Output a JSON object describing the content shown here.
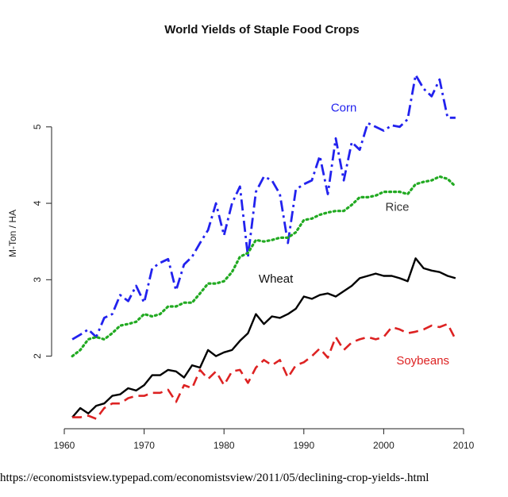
{
  "chart_data": {
    "type": "line",
    "title": "World Yields of Staple Food Crops",
    "xlabel": "",
    "ylabel": "M-Ton / HA",
    "xlim": [
      1960,
      2010
    ],
    "ylim": [
      1.05,
      5.85
    ],
    "xticks": [
      1960,
      1970,
      1980,
      1990,
      2000,
      2010
    ],
    "yticks": [
      2,
      3,
      4,
      5
    ],
    "x": [
      1961,
      1962,
      1963,
      1964,
      1965,
      1966,
      1967,
      1968,
      1969,
      1970,
      1971,
      1972,
      1973,
      1974,
      1975,
      1976,
      1977,
      1978,
      1979,
      1980,
      1981,
      1982,
      1983,
      1984,
      1985,
      1986,
      1987,
      1988,
      1989,
      1990,
      1991,
      1992,
      1993,
      1994,
      1995,
      1996,
      1997,
      1998,
      1999,
      2000,
      2001,
      2002,
      2003,
      2004,
      2005,
      2006,
      2007,
      2008,
      2009
    ],
    "series": [
      {
        "name": "Corn",
        "color": "#2222ee",
        "dash": "long-dash-dot",
        "values": [
          2.22,
          2.28,
          2.35,
          2.25,
          2.5,
          2.55,
          2.8,
          2.72,
          2.92,
          2.7,
          3.15,
          3.22,
          3.27,
          2.86,
          3.2,
          3.3,
          3.48,
          3.65,
          4.0,
          3.58,
          4.0,
          4.22,
          3.3,
          4.15,
          4.35,
          4.3,
          4.12,
          3.48,
          4.18,
          4.25,
          4.3,
          4.62,
          4.12,
          4.85,
          4.3,
          4.8,
          4.7,
          5.05,
          5.0,
          4.95,
          5.02,
          5.0,
          5.1,
          5.68,
          5.5,
          5.4,
          5.62,
          5.12,
          5.12
        ]
      },
      {
        "name": "Rice",
        "color": "#22aa22",
        "dash": "dotted",
        "values": [
          2.0,
          2.08,
          2.22,
          2.25,
          2.22,
          2.3,
          2.4,
          2.42,
          2.45,
          2.55,
          2.52,
          2.55,
          2.65,
          2.65,
          2.7,
          2.7,
          2.82,
          2.95,
          2.95,
          2.98,
          3.1,
          3.3,
          3.35,
          3.52,
          3.5,
          3.52,
          3.55,
          3.55,
          3.62,
          3.78,
          3.8,
          3.85,
          3.88,
          3.9,
          3.9,
          3.98,
          4.08,
          4.08,
          4.1,
          4.15,
          4.15,
          4.15,
          4.12,
          4.25,
          4.28,
          4.3,
          4.35,
          4.32,
          4.22
        ]
      },
      {
        "name": "Wheat",
        "color": "#000000",
        "dash": "solid",
        "values": [
          1.2,
          1.32,
          1.25,
          1.35,
          1.38,
          1.48,
          1.5,
          1.58,
          1.55,
          1.62,
          1.75,
          1.75,
          1.82,
          1.8,
          1.72,
          1.88,
          1.85,
          2.08,
          2.0,
          2.05,
          2.08,
          2.2,
          2.3,
          2.55,
          2.42,
          2.52,
          2.5,
          2.55,
          2.62,
          2.78,
          2.75,
          2.8,
          2.82,
          2.78,
          2.85,
          2.92,
          3.02,
          3.05,
          3.08,
          3.05,
          3.05,
          3.02,
          2.98,
          3.28,
          3.15,
          3.12,
          3.1,
          3.05,
          3.02
        ]
      },
      {
        "name": "Soybeans",
        "color": "#dd2222",
        "dash": "dashed",
        "values": [
          1.2,
          1.2,
          1.22,
          1.18,
          1.32,
          1.38,
          1.38,
          1.45,
          1.48,
          1.48,
          1.52,
          1.52,
          1.56,
          1.4,
          1.62,
          1.58,
          1.82,
          1.7,
          1.8,
          1.62,
          1.8,
          1.82,
          1.65,
          1.85,
          1.95,
          1.88,
          1.95,
          1.72,
          1.88,
          1.92,
          2.0,
          2.1,
          1.98,
          2.25,
          2.08,
          2.18,
          2.22,
          2.25,
          2.22,
          2.25,
          2.38,
          2.35,
          2.3,
          2.32,
          2.35,
          2.4,
          2.38,
          2.42,
          2.22
        ]
      }
    ],
    "annotations": [
      {
        "text": "Corn",
        "color": "#2222ee",
        "at_x": 1995,
        "at_y": 5.2
      },
      {
        "text": "Rice",
        "color": "#333333",
        "at_x": 2001.7,
        "at_y": 3.9
      },
      {
        "text": "Wheat",
        "color": "#111111",
        "at_x": 1986.5,
        "at_y": 2.96
      },
      {
        "text": "Soybeans",
        "color": "#dd2222",
        "at_x": 2004.9,
        "at_y": 1.89
      }
    ],
    "grid": false,
    "legend": "none"
  },
  "source_text": "https://economistsview.typepad.com/economistsview/2011/05/declining-crop-yields-.html"
}
